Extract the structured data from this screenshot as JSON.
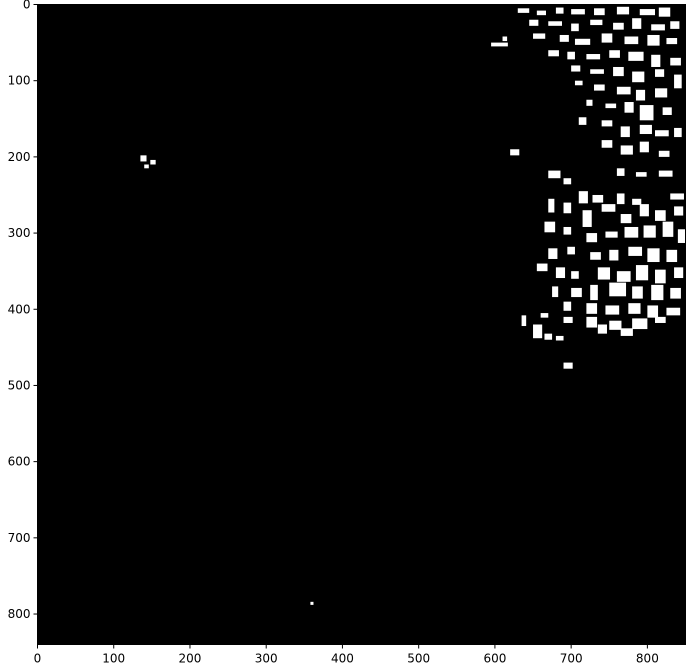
{
  "chart_data": {
    "type": "heatmap",
    "title": "",
    "xlabel": "",
    "ylabel": "",
    "xlim": [
      0,
      850
    ],
    "ylim": [
      840,
      0
    ],
    "x_ticks": [
      "0",
      "100",
      "200",
      "300",
      "400",
      "500",
      "600",
      "700",
      "800"
    ],
    "y_ticks": [
      "0",
      "100",
      "200",
      "300",
      "400",
      "500",
      "600",
      "700",
      "800"
    ],
    "background_color": "#000000",
    "foreground_color": "#ffffff",
    "grid": false,
    "legend": "none",
    "white_regions": [
      [
        630,
        5,
        15,
        6
      ],
      [
        655,
        8,
        12,
        6
      ],
      [
        680,
        4,
        10,
        8
      ],
      [
        700,
        6,
        18,
        7
      ],
      [
        730,
        5,
        14,
        9
      ],
      [
        760,
        3,
        16,
        10
      ],
      [
        790,
        6,
        20,
        8
      ],
      [
        815,
        4,
        15,
        12
      ],
      [
        645,
        20,
        12,
        8
      ],
      [
        670,
        22,
        18,
        6
      ],
      [
        700,
        25,
        10,
        10
      ],
      [
        725,
        20,
        16,
        7
      ],
      [
        755,
        24,
        14,
        9
      ],
      [
        780,
        18,
        12,
        14
      ],
      [
        805,
        26,
        18,
        8
      ],
      [
        830,
        22,
        12,
        10
      ],
      [
        650,
        38,
        16,
        7
      ],
      [
        685,
        40,
        12,
        9
      ],
      [
        705,
        45,
        20,
        8
      ],
      [
        740,
        38,
        14,
        12
      ],
      [
        770,
        42,
        18,
        10
      ],
      [
        800,
        40,
        16,
        14
      ],
      [
        825,
        44,
        14,
        8
      ],
      [
        595,
        50,
        22,
        5
      ],
      [
        610,
        42,
        6,
        6
      ],
      [
        670,
        60,
        14,
        8
      ],
      [
        695,
        62,
        10,
        10
      ],
      [
        720,
        65,
        18,
        7
      ],
      [
        750,
        60,
        14,
        10
      ],
      [
        775,
        62,
        20,
        12
      ],
      [
        805,
        66,
        12,
        16
      ],
      [
        830,
        70,
        14,
        10
      ],
      [
        700,
        80,
        12,
        8
      ],
      [
        725,
        85,
        18,
        6
      ],
      [
        755,
        82,
        14,
        12
      ],
      [
        780,
        88,
        16,
        14
      ],
      [
        810,
        85,
        12,
        10
      ],
      [
        835,
        92,
        10,
        18
      ],
      [
        705,
        100,
        10,
        6
      ],
      [
        730,
        105,
        14,
        8
      ],
      [
        760,
        108,
        18,
        10
      ],
      [
        785,
        112,
        12,
        14
      ],
      [
        810,
        110,
        16,
        12
      ],
      [
        720,
        125,
        8,
        8
      ],
      [
        745,
        130,
        14,
        6
      ],
      [
        770,
        128,
        12,
        14
      ],
      [
        790,
        132,
        18,
        20
      ],
      [
        820,
        135,
        12,
        10
      ],
      [
        710,
        148,
        10,
        10
      ],
      [
        740,
        152,
        14,
        8
      ],
      [
        765,
        160,
        12,
        14
      ],
      [
        790,
        158,
        16,
        12
      ],
      [
        810,
        165,
        18,
        8
      ],
      [
        835,
        162,
        10,
        12
      ],
      [
        620,
        190,
        12,
        8
      ],
      [
        740,
        178,
        14,
        10
      ],
      [
        765,
        185,
        16,
        12
      ],
      [
        790,
        180,
        12,
        14
      ],
      [
        815,
        192,
        14,
        8
      ],
      [
        670,
        218,
        16,
        10
      ],
      [
        690,
        228,
        10,
        8
      ],
      [
        760,
        215,
        10,
        10
      ],
      [
        785,
        220,
        14,
        6
      ],
      [
        815,
        218,
        18,
        8
      ],
      [
        135,
        198,
        8,
        8
      ],
      [
        148,
        204,
        7,
        6
      ],
      [
        140,
        210,
        6,
        5
      ],
      [
        710,
        245,
        12,
        16
      ],
      [
        728,
        250,
        14,
        10
      ],
      [
        760,
        248,
        10,
        14
      ],
      [
        780,
        255,
        12,
        8
      ],
      [
        830,
        248,
        18,
        8
      ],
      [
        670,
        255,
        8,
        18
      ],
      [
        690,
        260,
        10,
        14
      ],
      [
        715,
        270,
        12,
        22
      ],
      [
        740,
        262,
        18,
        10
      ],
      [
        765,
        275,
        14,
        12
      ],
      [
        790,
        262,
        12,
        16
      ],
      [
        810,
        270,
        14,
        14
      ],
      [
        835,
        265,
        12,
        12
      ],
      [
        665,
        285,
        14,
        14
      ],
      [
        690,
        292,
        10,
        10
      ],
      [
        720,
        300,
        14,
        12
      ],
      [
        745,
        298,
        16,
        8
      ],
      [
        770,
        292,
        18,
        14
      ],
      [
        795,
        290,
        16,
        16
      ],
      [
        820,
        285,
        14,
        20
      ],
      [
        840,
        295,
        10,
        18
      ],
      [
        670,
        320,
        12,
        14
      ],
      [
        695,
        318,
        10,
        10
      ],
      [
        725,
        325,
        14,
        10
      ],
      [
        750,
        322,
        12,
        14
      ],
      [
        775,
        318,
        18,
        12
      ],
      [
        800,
        320,
        16,
        18
      ],
      [
        825,
        322,
        14,
        16
      ],
      [
        655,
        340,
        14,
        10
      ],
      [
        680,
        345,
        12,
        14
      ],
      [
        700,
        350,
        10,
        10
      ],
      [
        735,
        345,
        16,
        16
      ],
      [
        760,
        350,
        18,
        14
      ],
      [
        785,
        342,
        16,
        20
      ],
      [
        810,
        348,
        14,
        18
      ],
      [
        835,
        345,
        12,
        14
      ],
      [
        675,
        370,
        8,
        14
      ],
      [
        700,
        372,
        14,
        12
      ],
      [
        725,
        368,
        10,
        20
      ],
      [
        750,
        365,
        22,
        18
      ],
      [
        780,
        370,
        14,
        16
      ],
      [
        805,
        368,
        16,
        20
      ],
      [
        830,
        372,
        14,
        14
      ],
      [
        690,
        390,
        10,
        12
      ],
      [
        720,
        392,
        14,
        14
      ],
      [
        745,
        395,
        18,
        12
      ],
      [
        775,
        392,
        16,
        14
      ],
      [
        800,
        395,
        14,
        16
      ],
      [
        825,
        398,
        18,
        10
      ],
      [
        635,
        408,
        6,
        14
      ],
      [
        660,
        405,
        10,
        6
      ],
      [
        690,
        410,
        12,
        8
      ],
      [
        720,
        410,
        14,
        14
      ],
      [
        750,
        415,
        16,
        12
      ],
      [
        780,
        412,
        20,
        14
      ],
      [
        810,
        410,
        14,
        8
      ],
      [
        650,
        420,
        12,
        18
      ],
      [
        665,
        432,
        10,
        8
      ],
      [
        680,
        435,
        10,
        6
      ],
      [
        735,
        420,
        12,
        12
      ],
      [
        765,
        425,
        16,
        10
      ],
      [
        690,
        470,
        12,
        8
      ],
      [
        358,
        784,
        4,
        4
      ]
    ]
  }
}
